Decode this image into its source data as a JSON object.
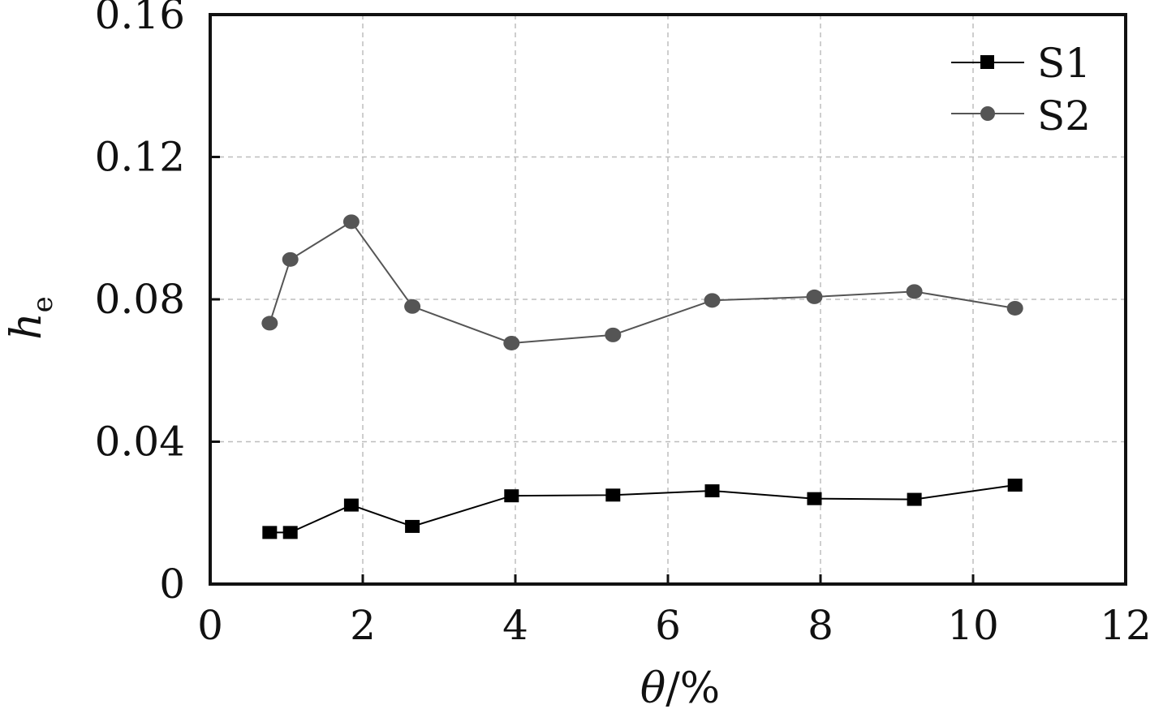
{
  "chart_data": {
    "type": "line",
    "xlabel": {
      "main": "θ",
      "rest": "/%"
    },
    "ylabel": {
      "main": "h",
      "sub": "e"
    },
    "xlim": [
      0,
      12
    ],
    "ylim": [
      0,
      0.16
    ],
    "xticks": [
      0,
      2,
      4,
      6,
      8,
      10,
      12
    ],
    "xtick_labels": [
      "0",
      "2",
      "4",
      "6",
      "8",
      "10",
      "12"
    ],
    "yticks": [
      0,
      0.04,
      0.08,
      0.12,
      0.16
    ],
    "ytick_labels": [
      "0",
      "0.04",
      "0.08",
      "0.12",
      "0.16"
    ],
    "grid": true,
    "legend_position": "top-right",
    "series": [
      {
        "name": "S1",
        "marker": "square",
        "color": "#000000",
        "x": [
          0.78,
          1.05,
          1.85,
          2.65,
          3.95,
          5.28,
          6.58,
          7.92,
          9.23,
          10.55
        ],
        "y": [
          0.0145,
          0.0145,
          0.0222,
          0.0162,
          0.0248,
          0.025,
          0.0262,
          0.024,
          0.0238,
          0.0278
        ]
      },
      {
        "name": "S2",
        "marker": "circle",
        "color": "#555555",
        "x": [
          0.78,
          1.05,
          1.85,
          2.65,
          3.95,
          5.28,
          6.58,
          7.92,
          9.23,
          10.55
        ],
        "y": [
          0.0733,
          0.0912,
          0.1018,
          0.078,
          0.0677,
          0.07,
          0.0797,
          0.0807,
          0.0822,
          0.0775
        ]
      }
    ]
  }
}
